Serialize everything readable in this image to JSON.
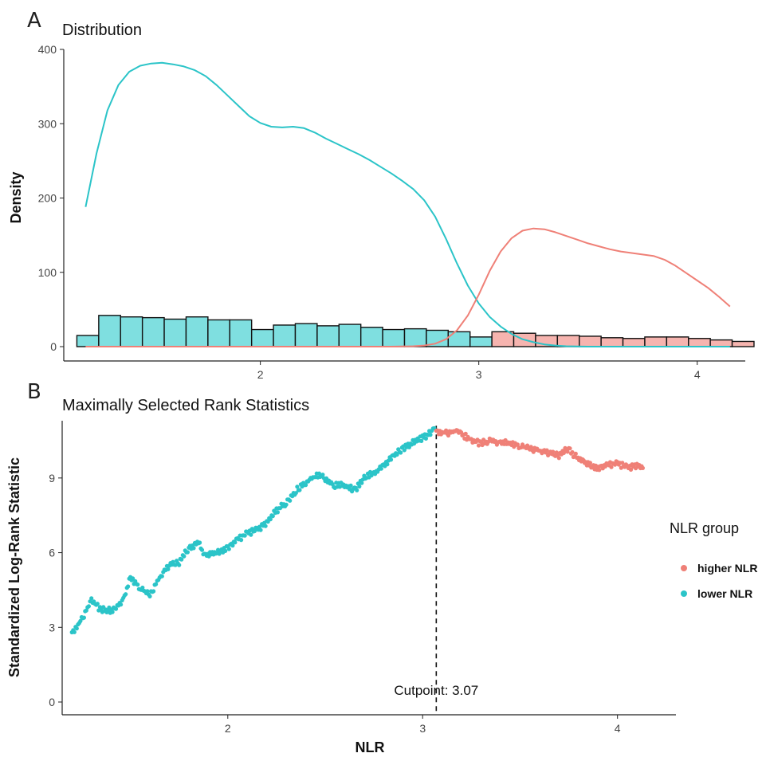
{
  "colors": {
    "low": "#2bc4c8",
    "high": "#ef8077",
    "low_fill": "#7fdfe0",
    "high_fill": "#f6b4af"
  },
  "chart_data": [
    {
      "type": "histogram+density",
      "panel_label": "A",
      "title": "Distribution",
      "ylabel": "Density",
      "xlabel": "",
      "xlim": [
        1.1,
        4.22
      ],
      "ylim": [
        0,
        400
      ],
      "x_ticks": [
        2,
        3,
        4
      ],
      "y_ticks": [
        0,
        100,
        200,
        300,
        400
      ],
      "histogram": {
        "bin_width": 0.1,
        "bins": [
          {
            "x0": 1.16,
            "count": 15,
            "group": "lower NLR"
          },
          {
            "x0": 1.26,
            "count": 42,
            "group": "lower NLR"
          },
          {
            "x0": 1.36,
            "count": 40,
            "group": "lower NLR"
          },
          {
            "x0": 1.46,
            "count": 39,
            "group": "lower NLR"
          },
          {
            "x0": 1.56,
            "count": 37,
            "group": "lower NLR"
          },
          {
            "x0": 1.66,
            "count": 40,
            "group": "lower NLR"
          },
          {
            "x0": 1.76,
            "count": 36,
            "group": "lower NLR"
          },
          {
            "x0": 1.86,
            "count": 36,
            "group": "lower NLR"
          },
          {
            "x0": 1.96,
            "count": 23,
            "group": "lower NLR"
          },
          {
            "x0": 2.06,
            "count": 29,
            "group": "lower NLR"
          },
          {
            "x0": 2.16,
            "count": 31,
            "group": "lower NLR"
          },
          {
            "x0": 2.26,
            "count": 28,
            "group": "lower NLR"
          },
          {
            "x0": 2.36,
            "count": 30,
            "group": "lower NLR"
          },
          {
            "x0": 2.46,
            "count": 26,
            "group": "lower NLR"
          },
          {
            "x0": 2.56,
            "count": 23,
            "group": "lower NLR"
          },
          {
            "x0": 2.66,
            "count": 24,
            "group": "lower NLR"
          },
          {
            "x0": 2.76,
            "count": 22,
            "group": "lower NLR"
          },
          {
            "x0": 2.86,
            "count": 20,
            "group": "lower NLR"
          },
          {
            "x0": 2.96,
            "count": 13,
            "group": "lower NLR"
          },
          {
            "x0": 3.06,
            "count": 20,
            "group": "higher NLR"
          },
          {
            "x0": 3.16,
            "count": 18,
            "group": "higher NLR"
          },
          {
            "x0": 3.26,
            "count": 15,
            "group": "higher NLR"
          },
          {
            "x0": 3.36,
            "count": 15,
            "group": "higher NLR"
          },
          {
            "x0": 3.46,
            "count": 14,
            "group": "higher NLR"
          },
          {
            "x0": 3.56,
            "count": 12,
            "group": "higher NLR"
          },
          {
            "x0": 3.66,
            "count": 11,
            "group": "higher NLR"
          },
          {
            "x0": 3.76,
            "count": 13,
            "group": "higher NLR"
          },
          {
            "x0": 3.86,
            "count": 13,
            "group": "higher NLR"
          },
          {
            "x0": 3.96,
            "count": 11,
            "group": "higher NLR"
          },
          {
            "x0": 4.06,
            "count": 9,
            "group": "higher NLR"
          },
          {
            "x0": 4.16,
            "count": 7,
            "group": "higher NLR"
          }
        ]
      },
      "series": [
        {
          "group": "lower NLR",
          "points": [
            [
              1.2,
              188
            ],
            [
              1.25,
              260
            ],
            [
              1.3,
              318
            ],
            [
              1.35,
              352
            ],
            [
              1.4,
              370
            ],
            [
              1.45,
              378
            ],
            [
              1.5,
              381
            ],
            [
              1.55,
              382
            ],
            [
              1.6,
              380
            ],
            [
              1.65,
              377
            ],
            [
              1.7,
              372
            ],
            [
              1.75,
              364
            ],
            [
              1.8,
              352
            ],
            [
              1.85,
              338
            ],
            [
              1.9,
              324
            ],
            [
              1.95,
              310
            ],
            [
              2.0,
              301
            ],
            [
              2.05,
              296
            ],
            [
              2.1,
              295
            ],
            [
              2.15,
              296
            ],
            [
              2.2,
              294
            ],
            [
              2.25,
              288
            ],
            [
              2.3,
              280
            ],
            [
              2.35,
              273
            ],
            [
              2.4,
              266
            ],
            [
              2.45,
              259
            ],
            [
              2.5,
              251
            ],
            [
              2.55,
              242
            ],
            [
              2.6,
              233
            ],
            [
              2.65,
              223
            ],
            [
              2.7,
              212
            ],
            [
              2.75,
              197
            ],
            [
              2.8,
              175
            ],
            [
              2.85,
              145
            ],
            [
              2.9,
              112
            ],
            [
              2.95,
              82
            ],
            [
              3.0,
              58
            ],
            [
              3.05,
              40
            ],
            [
              3.1,
              27
            ],
            [
              3.15,
              17
            ],
            [
              3.2,
              10
            ],
            [
              3.25,
              6
            ],
            [
              3.3,
              3
            ],
            [
              3.35,
              1.5
            ],
            [
              3.4,
              0.5
            ],
            [
              3.5,
              0
            ],
            [
              3.6,
              0
            ],
            [
              3.7,
              0
            ],
            [
              3.8,
              0
            ],
            [
              3.9,
              0
            ],
            [
              4.0,
              0
            ],
            [
              4.1,
              0
            ],
            [
              4.15,
              0
            ]
          ]
        },
        {
          "group": "higher NLR",
          "points": [
            [
              1.2,
              0
            ],
            [
              1.4,
              0
            ],
            [
              1.6,
              0
            ],
            [
              1.8,
              0
            ],
            [
              2.0,
              0
            ],
            [
              2.2,
              0
            ],
            [
              2.4,
              0
            ],
            [
              2.6,
              0
            ],
            [
              2.7,
              0.5
            ],
            [
              2.75,
              1.5
            ],
            [
              2.8,
              4
            ],
            [
              2.85,
              10
            ],
            [
              2.9,
              22
            ],
            [
              2.95,
              42
            ],
            [
              3.0,
              70
            ],
            [
              3.05,
              102
            ],
            [
              3.1,
              128
            ],
            [
              3.15,
              146
            ],
            [
              3.2,
              156
            ],
            [
              3.25,
              159
            ],
            [
              3.3,
              158
            ],
            [
              3.35,
              154
            ],
            [
              3.4,
              149
            ],
            [
              3.45,
              144
            ],
            [
              3.5,
              139
            ],
            [
              3.55,
              135
            ],
            [
              3.6,
              131
            ],
            [
              3.65,
              128
            ],
            [
              3.7,
              126
            ],
            [
              3.75,
              124
            ],
            [
              3.8,
              122
            ],
            [
              3.85,
              117
            ],
            [
              3.9,
              109
            ],
            [
              3.95,
              99
            ],
            [
              4.0,
              89
            ],
            [
              4.05,
              79
            ],
            [
              4.1,
              67
            ],
            [
              4.15,
              54
            ]
          ]
        }
      ]
    },
    {
      "type": "scatter",
      "panel_label": "B",
      "title": "Maximally Selected Rank Statistics",
      "xlabel": "NLR",
      "ylabel": "Standardized Log-Rank Statistic",
      "xlim": [
        1.15,
        4.3
      ],
      "ylim": [
        0,
        11.3
      ],
      "x_ticks": [
        2,
        3,
        4
      ],
      "y_ticks": [
        0,
        3,
        6,
        9
      ],
      "cutpoint": 3.07,
      "cutpoint_label": "Cutpoint: 3.07",
      "legend": {
        "title": "NLR group",
        "position": "right",
        "entries": [
          {
            "label": "higher NLR",
            "group": "higher NLR"
          },
          {
            "label": "lower NLR",
            "group": "lower NLR"
          }
        ]
      },
      "series": [
        {
          "group": "lower NLR",
          "trace": [
            [
              1.2,
              2.8
            ],
            [
              1.25,
              3.3
            ],
            [
              1.28,
              3.8
            ],
            [
              1.3,
              4.1
            ],
            [
              1.35,
              3.7
            ],
            [
              1.42,
              3.7
            ],
            [
              1.47,
              4.2
            ],
            [
              1.5,
              5.0
            ],
            [
              1.55,
              4.6
            ],
            [
              1.6,
              4.3
            ],
            [
              1.65,
              5.0
            ],
            [
              1.7,
              5.5
            ],
            [
              1.75,
              5.6
            ],
            [
              1.8,
              6.2
            ],
            [
              1.85,
              6.4
            ],
            [
              1.88,
              5.9
            ],
            [
              1.95,
              6.0
            ],
            [
              2.0,
              6.2
            ],
            [
              2.05,
              6.5
            ],
            [
              2.1,
              6.8
            ],
            [
              2.15,
              6.9
            ],
            [
              2.2,
              7.2
            ],
            [
              2.25,
              7.7
            ],
            [
              2.3,
              8.0
            ],
            [
              2.35,
              8.5
            ],
            [
              2.4,
              8.8
            ],
            [
              2.45,
              9.1
            ],
            [
              2.5,
              9.0
            ],
            [
              2.55,
              8.7
            ],
            [
              2.6,
              8.7
            ],
            [
              2.65,
              8.5
            ],
            [
              2.7,
              9.0
            ],
            [
              2.75,
              9.2
            ],
            [
              2.8,
              9.5
            ],
            [
              2.85,
              9.9
            ],
            [
              2.9,
              10.2
            ],
            [
              2.95,
              10.4
            ],
            [
              3.0,
              10.6
            ],
            [
              3.04,
              10.8
            ],
            [
              3.06,
              11.0
            ]
          ]
        },
        {
          "group": "higher NLR",
          "trace": [
            [
              3.07,
              10.9
            ],
            [
              3.12,
              10.8
            ],
            [
              3.18,
              10.9
            ],
            [
              3.25,
              10.5
            ],
            [
              3.3,
              10.4
            ],
            [
              3.35,
              10.5
            ],
            [
              3.4,
              10.4
            ],
            [
              3.45,
              10.4
            ],
            [
              3.5,
              10.3
            ],
            [
              3.55,
              10.2
            ],
            [
              3.6,
              10.1
            ],
            [
              3.65,
              10.0
            ],
            [
              3.7,
              9.9
            ],
            [
              3.75,
              10.2
            ],
            [
              3.78,
              9.9
            ],
            [
              3.82,
              9.7
            ],
            [
              3.86,
              9.5
            ],
            [
              3.9,
              9.4
            ],
            [
              3.95,
              9.5
            ],
            [
              4.0,
              9.6
            ],
            [
              4.05,
              9.4
            ],
            [
              4.1,
              9.5
            ],
            [
              4.13,
              9.4
            ]
          ]
        }
      ]
    }
  ]
}
